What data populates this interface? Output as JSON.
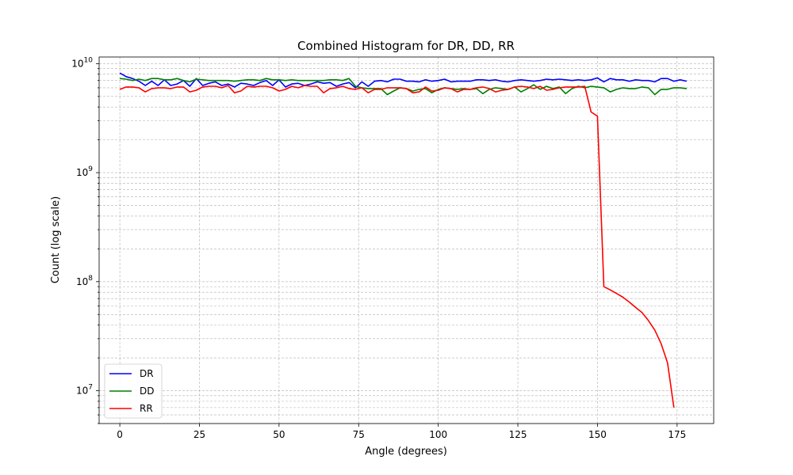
{
  "chart_data": {
    "type": "line",
    "title": "Combined Histogram for DR, DD, RR",
    "xlabel": "Angle (degrees)",
    "ylabel": "Count (log scale)",
    "y_scale": "log",
    "xlim": [
      -6.5,
      186.5
    ],
    "ylim": [
      5000000,
      11500000000
    ],
    "x_ticks": [
      0,
      25,
      50,
      75,
      100,
      125,
      150,
      175
    ],
    "x_tick_labels": [
      "0",
      "25",
      "50",
      "75",
      "100",
      "125",
      "150",
      "175"
    ],
    "y_major_ticks": [
      10000000,
      100000000,
      1000000000,
      10000000000
    ],
    "y_tick_labels": [
      "10^7",
      "10^8",
      "10^9",
      "10^10"
    ],
    "grid": true,
    "legend_position": "lower-left",
    "x": [
      0,
      2,
      4,
      6,
      8,
      10,
      12,
      14,
      16,
      18,
      20,
      22,
      24,
      26,
      28,
      30,
      32,
      34,
      36,
      38,
      40,
      42,
      44,
      46,
      48,
      50,
      52,
      54,
      56,
      58,
      60,
      62,
      64,
      66,
      68,
      70,
      72,
      74,
      76,
      78,
      80,
      82,
      84,
      86,
      88,
      90,
      92,
      94,
      96,
      98,
      100,
      102,
      104,
      106,
      108,
      110,
      112,
      114,
      116,
      118,
      120,
      122,
      124,
      126,
      128,
      130,
      132,
      134,
      136,
      138,
      140,
      142,
      144,
      146,
      148,
      150,
      152,
      154,
      156,
      158,
      160,
      162,
      164,
      166,
      168,
      170,
      172,
      174,
      176,
      178
    ],
    "series": [
      {
        "name": "DR",
        "color": "#0000ff",
        "values": [
          8200000000,
          7600000000,
          7300000000,
          6900000000,
          6300000000,
          6900000000,
          6300000000,
          7100000000,
          6300000000,
          6500000000,
          7000000000,
          6200000000,
          7300000000,
          6300000000,
          6600000000,
          6800000000,
          6300000000,
          6500000000,
          6100000000,
          6600000000,
          6500000000,
          6300000000,
          6700000000,
          7000000000,
          6300000000,
          7100000000,
          6100000000,
          6500000000,
          6600000000,
          6300000000,
          6500000000,
          6800000000,
          6600000000,
          6700000000,
          6200000000,
          6500000000,
          6700000000,
          6000000000,
          6800000000,
          6200000000,
          6900000000,
          7000000000,
          6800000000,
          7200000000,
          7200000000,
          6900000000,
          6900000000,
          6800000000,
          7100000000,
          6900000000,
          7000000000,
          7200000000,
          6800000000,
          6900000000,
          6900000000,
          6900000000,
          7100000000,
          7100000000,
          7000000000,
          7100000000,
          6900000000,
          6800000000,
          7000000000,
          7100000000,
          7000000000,
          6900000000,
          7000000000,
          7200000000,
          7100000000,
          7200000000,
          7100000000,
          7000000000,
          7100000000,
          7000000000,
          7100000000,
          7400000000,
          6800000000,
          7300000000,
          7100000000,
          7100000000,
          6900000000,
          7100000000,
          7000000000,
          7000000000,
          6800000000,
          7300000000,
          7300000000,
          6900000000,
          7100000000,
          6900000000
        ]
      },
      {
        "name": "DD",
        "color": "#008000",
        "values": [
          7300000000,
          7200000000,
          7000000000,
          7200000000,
          7000000000,
          7300000000,
          7300000000,
          7100000000,
          7100000000,
          7300000000,
          7000000000,
          6800000000,
          7200000000,
          7100000000,
          7000000000,
          7000000000,
          7000000000,
          7000000000,
          6900000000,
          7000000000,
          7100000000,
          7100000000,
          7000000000,
          7300000000,
          7100000000,
          7100000000,
          7000000000,
          7100000000,
          7000000000,
          7000000000,
          7000000000,
          7000000000,
          7000000000,
          7100000000,
          7100000000,
          7000000000,
          7300000000,
          6200000000,
          6000000000,
          5900000000,
          5900000000,
          5900000000,
          5200000000,
          5600000000,
          6000000000,
          5900000000,
          5600000000,
          5800000000,
          5900000000,
          5400000000,
          5800000000,
          6000000000,
          5900000000,
          5800000000,
          5900000000,
          5800000000,
          5900000000,
          5300000000,
          5800000000,
          6000000000,
          5900000000,
          5800000000,
          6100000000,
          5500000000,
          5900000000,
          6400000000,
          5800000000,
          6200000000,
          5900000000,
          6100000000,
          5300000000,
          5900000000,
          6200000000,
          6000000000,
          6200000000,
          6100000000,
          6000000000,
          5500000000,
          5800000000,
          6000000000,
          5900000000,
          5900000000,
          6100000000,
          6000000000,
          5200000000,
          5800000000,
          5800000000,
          6000000000,
          6000000000,
          5900000000
        ]
      },
      {
        "name": "RR",
        "color": "#ff0000",
        "values": [
          5800000000,
          6100000000,
          6100000000,
          6000000000,
          5500000000,
          5900000000,
          6000000000,
          6000000000,
          5900000000,
          6100000000,
          6100000000,
          5500000000,
          5700000000,
          6100000000,
          6200000000,
          6200000000,
          6000000000,
          6300000000,
          5400000000,
          5600000000,
          6200000000,
          6100000000,
          6200000000,
          6200000000,
          6000000000,
          5600000000,
          5800000000,
          6200000000,
          6000000000,
          6300000000,
          6200000000,
          6200000000,
          5400000000,
          5900000000,
          6000000000,
          6200000000,
          5900000000,
          5800000000,
          6000000000,
          5400000000,
          5800000000,
          5800000000,
          6000000000,
          6000000000,
          6000000000,
          5900000000,
          5400000000,
          5500000000,
          6100000000,
          5600000000,
          5700000000,
          6000000000,
          5900000000,
          5500000000,
          5800000000,
          5800000000,
          6000000000,
          6100000000,
          5900000000,
          5500000000,
          5700000000,
          5800000000,
          6100000000,
          6200000000,
          6100000000,
          5900000000,
          6200000000,
          5700000000,
          5800000000,
          6000000000,
          6100000000,
          6100000000,
          6100000000,
          6200000000,
          3600000000,
          3300000000,
          90000000,
          84000000,
          78000000,
          72000000,
          65000000,
          58000000,
          52000000,
          44000000,
          36000000,
          27000000,
          18000000,
          7000000,
          null,
          null
        ]
      }
    ]
  }
}
